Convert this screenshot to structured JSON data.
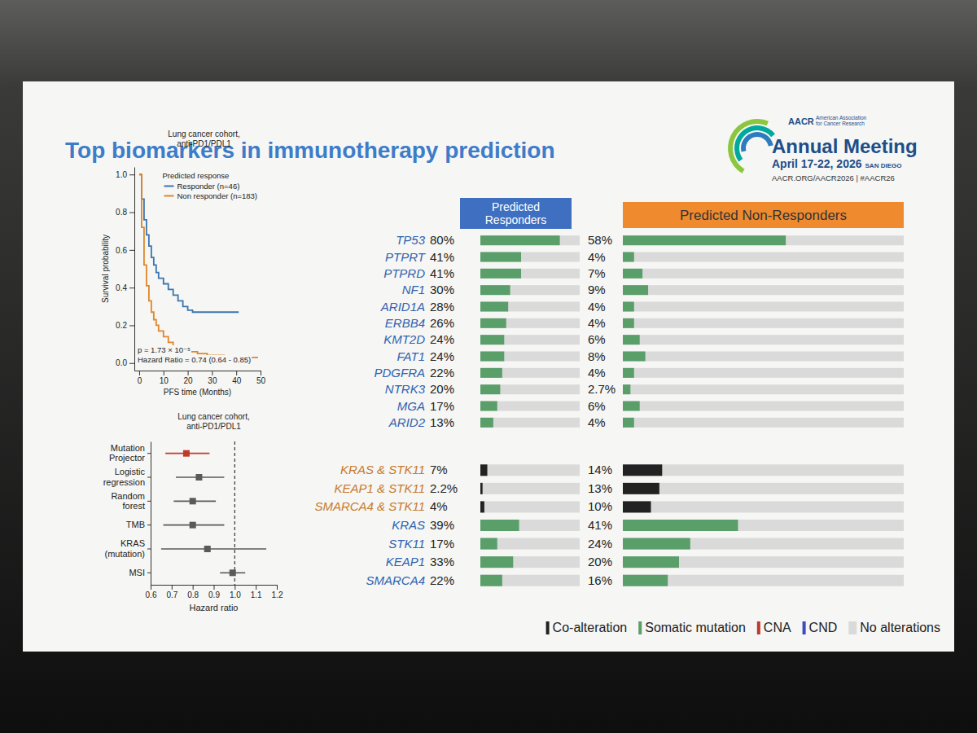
{
  "header": {
    "title": "Top biomarkers in immunotherapy prediction",
    "logo": [
      "AACR",
      "American Association for Cancer Research",
      "Annual Meeting",
      "April 17-22, 2026",
      "SAN DIEGO",
      "AACR.ORG/AACR2026 | #AACR26"
    ]
  },
  "chart_data": [
    {
      "type": "line",
      "title": "Lung cancer cohort, anti-PD1/PDL1",
      "xlabel": "PFS time (Months)",
      "ylabel": "Survival probability",
      "legend": "top-right",
      "legend_title": "Predicted response",
      "line_style": "step",
      "series": [
        {
          "name": "Responder (n=46)",
          "color": "#3b75af",
          "x": [
            0,
            1,
            2,
            3,
            4,
            5,
            6,
            7,
            8,
            10,
            12,
            14,
            16,
            18,
            20,
            22,
            41
          ],
          "values": [
            1.0,
            0.87,
            0.76,
            0.68,
            0.62,
            0.56,
            0.52,
            0.48,
            0.45,
            0.42,
            0.39,
            0.36,
            0.33,
            0.3,
            0.28,
            0.27,
            0.27
          ]
        },
        {
          "name": "Non responder (n=183)",
          "color": "#e0862a",
          "x": [
            0,
            1,
            2,
            3,
            4,
            5,
            6,
            7,
            8,
            10,
            12,
            14,
            16,
            18,
            20,
            24,
            28,
            35,
            49
          ],
          "values": [
            1.0,
            0.72,
            0.52,
            0.41,
            0.33,
            0.27,
            0.23,
            0.2,
            0.17,
            0.14,
            0.11,
            0.09,
            0.08,
            0.07,
            0.06,
            0.05,
            0.04,
            0.03,
            0.03
          ]
        }
      ],
      "xlim": [
        -2,
        50
      ],
      "xticks": [
        0,
        10,
        20,
        30,
        40,
        50
      ],
      "ylim": [
        -0.04,
        1.04
      ],
      "yticks": [
        {
          "value": 0,
          "label": "0.0"
        },
        0.2,
        0.4,
        0.6,
        0.8,
        {
          "value": 1,
          "label": "1.0"
        }
      ],
      "annotations": [
        "p = 1.73 × 10⁻⁵",
        "Hazard Ratio = 0.74 (0.64 - 0.85)"
      ]
    },
    {
      "type": "forest",
      "title": "Lung cancer cohort, anti-PD1/PDL1",
      "xlabel": "Hazard ratio",
      "categories": [
        "Mutation Projector",
        "Logistic regression",
        "Random forest",
        "TMB",
        "KRAS (mutation)",
        "MSI"
      ],
      "values": [
        0.77,
        0.83,
        0.8,
        0.8,
        0.87,
        0.99
      ],
      "lower": [
        0.67,
        0.72,
        0.71,
        0.66,
        0.65,
        0.93
      ],
      "upper": [
        0.88,
        0.95,
        0.91,
        0.95,
        1.15,
        1.05
      ],
      "colors": [
        "#c0392b",
        "#5a5a5a",
        "#5a5a5a",
        "#5a5a5a",
        "#5a5a5a",
        "#5a5a5a"
      ],
      "marker": "square",
      "reference_line": 1,
      "xlim": [
        0.6,
        1.2
      ],
      "xticks": [
        0.6,
        0.7,
        0.8,
        0.9,
        {
          "value": 1,
          "label": "1.0"
        },
        1.1,
        1.2
      ]
    },
    {
      "type": "bar",
      "orientation": "horizontal",
      "data_labels": true,
      "tick_labels": false,
      "categories": [
        "TP53",
        "PTPRT",
        "PTPRD",
        "NF1",
        "ARID1A",
        "ERBB4",
        "KMT2D",
        "FAT1",
        "PDGFRA",
        "NTRK3",
        "MGA",
        "ARID2",
        "KRAS & STK11",
        "KEAP1 & STK11",
        "SMARCA4 & STK11",
        "KRAS",
        "STK11",
        "KEAP1",
        "SMARCA4"
      ],
      "label_colors": [
        "#2f63b0",
        "#2f63b0",
        "#2f63b0",
        "#2f63b0",
        "#2f63b0",
        "#2f63b0",
        "#2f63b0",
        "#2f63b0",
        "#2f63b0",
        "#2f63b0",
        "#2f63b0",
        "#2f63b0",
        "#c77a2c",
        "#c77a2c",
        "#c77a2c",
        "#2f63b0",
        "#2f63b0",
        "#2f63b0",
        "#2f63b0"
      ],
      "alteration": [
        "Somatic mutation",
        "Somatic mutation",
        "Somatic mutation",
        "Somatic mutation",
        "Somatic mutation",
        "Somatic mutation",
        "Somatic mutation",
        "Somatic mutation",
        "Somatic mutation",
        "Somatic mutation",
        "Somatic mutation",
        "Somatic mutation",
        "Co-alteration",
        "Co-alteration",
        "Co-alteration",
        "Somatic mutation",
        "Somatic mutation",
        "Somatic mutation",
        "Somatic mutation"
      ],
      "series": [
        {
          "name": "Predicted Responders",
          "color": "#3f6fc0",
          "values": [
            80,
            41,
            41,
            30,
            28,
            26,
            24,
            24,
            22,
            20,
            17,
            13,
            7,
            2.2,
            4,
            39,
            17,
            33,
            22
          ],
          "value_labels": [
            "80%",
            "41%",
            "41%",
            "30%",
            "28%",
            "26%",
            "24%",
            "24%",
            "22%",
            "20%",
            "17%",
            "13%",
            "7%",
            "2.2%",
            "4%",
            "39%",
            "17%",
            "33%",
            "22%"
          ]
        },
        {
          "name": "Predicted Non-Responders",
          "color": "#f08a2f",
          "values": [
            58,
            4,
            7,
            9,
            4,
            4,
            6,
            8,
            4,
            2.7,
            6,
            4,
            14,
            13,
            10,
            41,
            24,
            20,
            16
          ],
          "value_labels": [
            "58%",
            "4%",
            "7%",
            "9%",
            "4%",
            "4%",
            "6%",
            "8%",
            "4%",
            "2.7%",
            "6%",
            "4%",
            "14%",
            "13%",
            "10%",
            "41%",
            "24%",
            "20%",
            "16%"
          ]
        }
      ],
      "xlim": [
        0,
        100
      ],
      "legend": "bottom-right",
      "legend_items": [
        {
          "name": "Co-alteration",
          "color": "#222222"
        },
        {
          "name": "Somatic mutation",
          "color": "#5a9e6a"
        },
        {
          "name": "CNA",
          "color": "#c0392b"
        },
        {
          "name": "CND",
          "color": "#3b4cc0"
        },
        {
          "name": "No alterations",
          "color": "#dadada"
        }
      ]
    }
  ]
}
